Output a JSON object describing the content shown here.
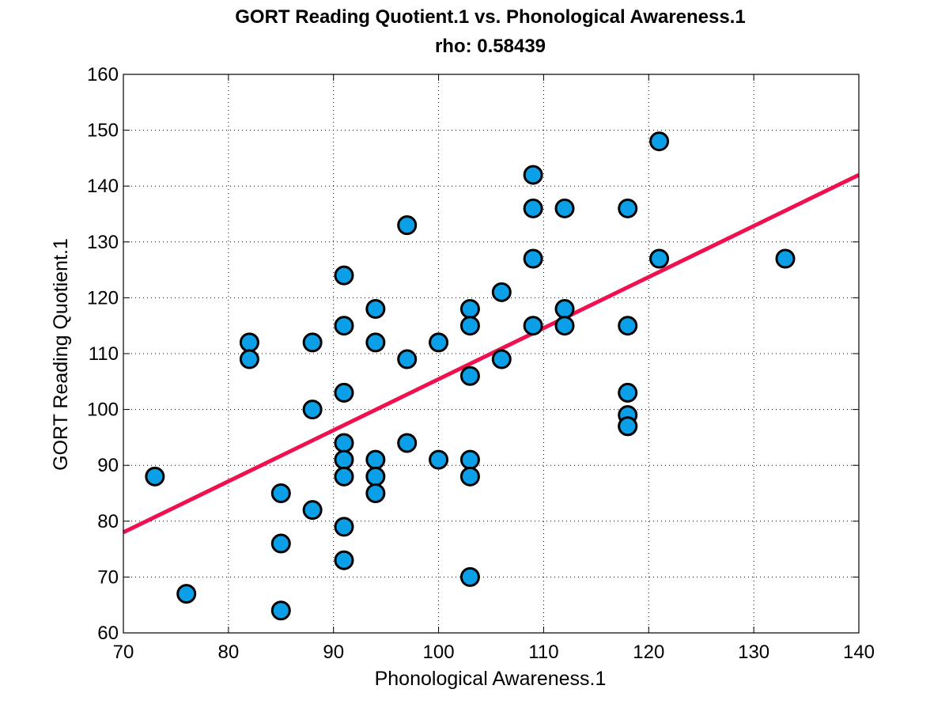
{
  "chart_data": {
    "type": "scatter",
    "title": "GORT Reading Quotient.1 vs. Phonological Awareness.1",
    "subtitle": "rho: 0.58439",
    "xlabel": "Phonological Awareness.1",
    "ylabel": "GORT Reading Quotient.1",
    "xlim": [
      70,
      140
    ],
    "ylim": [
      60,
      160
    ],
    "xticks": [
      70,
      80,
      90,
      100,
      110,
      120,
      130,
      140
    ],
    "yticks": [
      60,
      70,
      80,
      90,
      100,
      110,
      120,
      130,
      140,
      150,
      160
    ],
    "grid": true,
    "colors": {
      "point_fill": "#0b9fe8",
      "point_edge": "#000000",
      "fit_line": "#f0104f"
    },
    "fit_line": {
      "x": [
        70,
        140
      ],
      "y": [
        78,
        142
      ]
    },
    "points": {
      "x": [
        73,
        76,
        82,
        82,
        85,
        85,
        85,
        88,
        88,
        88,
        91,
        91,
        91,
        91,
        91,
        91,
        91,
        91,
        94,
        94,
        94,
        94,
        94,
        97,
        97,
        97,
        100,
        100,
        103,
        103,
        103,
        103,
        103,
        103,
        106,
        106,
        109,
        109,
        109,
        109,
        112,
        112,
        112,
        118,
        118,
        118,
        118,
        118,
        118,
        121,
        121,
        133
      ],
      "y": [
        88,
        67,
        112,
        109,
        85,
        76,
        64,
        112,
        100,
        82,
        124,
        115,
        103,
        94,
        91,
        88,
        79,
        73,
        118,
        112,
        91,
        88,
        85,
        133,
        109,
        94,
        112,
        91,
        118,
        115,
        106,
        91,
        88,
        70,
        121,
        109,
        142,
        136,
        127,
        115,
        136,
        118,
        115,
        136,
        115,
        103,
        99,
        97,
        97,
        148,
        127,
        127
      ]
    }
  }
}
